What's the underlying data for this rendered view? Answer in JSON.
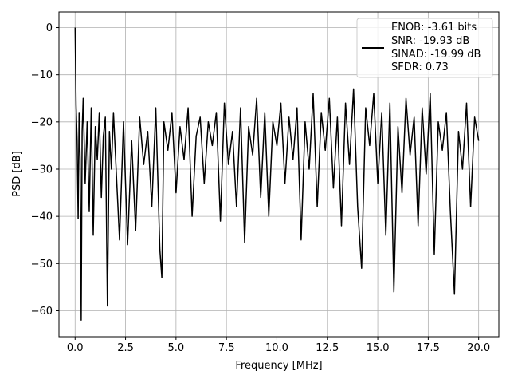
{
  "chart_data": {
    "type": "line",
    "title": "",
    "xlabel": "Frequency [MHz]",
    "ylabel": "PSD [dB]",
    "xlim": [
      -0.8,
      21.0
    ],
    "ylim": [
      -65.5,
      3.3
    ],
    "xticks": [
      0.0,
      2.5,
      5.0,
      7.5,
      10.0,
      12.5,
      15.0,
      17.5,
      20.0
    ],
    "xtick_labels": [
      "0.0",
      "2.5",
      "5.0",
      "7.5",
      "10.0",
      "12.5",
      "15.0",
      "17.5",
      "20.0"
    ],
    "yticks": [
      0,
      -10,
      -20,
      -30,
      -40,
      -50,
      -60
    ],
    "ytick_labels": [
      "0",
      "−10",
      "−20",
      "−30",
      "−40",
      "−50",
      "−60"
    ],
    "grid": true,
    "legend_position": "top-right",
    "line_color": "#000000",
    "series": [
      {
        "name": "ENOB: -3.61 bits\nSNR: -19.93 dB\nSINAD: -19.99 dB\nSFDR: 0.73",
        "x": [
          0.0,
          0.05,
          0.1,
          0.15,
          0.2,
          0.25,
          0.3,
          0.35,
          0.4,
          0.5,
          0.6,
          0.7,
          0.8,
          0.9,
          1.0,
          1.1,
          1.2,
          1.3,
          1.4,
          1.5,
          1.6,
          1.7,
          1.8,
          1.9,
          2.0,
          2.2,
          2.4,
          2.6,
          2.8,
          3.0,
          3.2,
          3.4,
          3.6,
          3.8,
          4.0,
          4.2,
          4.3,
          4.4,
          4.6,
          4.8,
          5.0,
          5.2,
          5.4,
          5.6,
          5.8,
          6.0,
          6.2,
          6.4,
          6.6,
          6.8,
          7.0,
          7.2,
          7.4,
          7.6,
          7.8,
          8.0,
          8.2,
          8.4,
          8.6,
          8.8,
          9.0,
          9.2,
          9.4,
          9.6,
          9.8,
          10.0,
          10.2,
          10.4,
          10.6,
          10.8,
          11.0,
          11.2,
          11.4,
          11.6,
          11.8,
          12.0,
          12.2,
          12.4,
          12.6,
          12.8,
          13.0,
          13.2,
          13.4,
          13.6,
          13.8,
          14.0,
          14.2,
          14.4,
          14.6,
          14.8,
          15.0,
          15.2,
          15.4,
          15.6,
          15.8,
          16.0,
          16.2,
          16.4,
          16.6,
          16.8,
          17.0,
          17.2,
          17.4,
          17.6,
          17.8,
          18.0,
          18.2,
          18.4,
          18.6,
          18.8,
          19.0,
          19.2,
          19.4,
          19.6,
          19.8,
          20.0
        ],
        "values": [
          0.0,
          -16.5,
          -24.0,
          -40.5,
          -18.0,
          -28.0,
          -62.0,
          -22.0,
          -15.0,
          -33.0,
          -20.0,
          -39.0,
          -17.0,
          -44.0,
          -21.0,
          -28.0,
          -18.0,
          -36.0,
          -23.0,
          -19.0,
          -59.0,
          -22.0,
          -30.0,
          -18.0,
          -27.0,
          -45.0,
          -20.0,
          -46.0,
          -24.0,
          -43.0,
          -19.0,
          -29.0,
          -22.0,
          -38.0,
          -17.0,
          -47.0,
          -53.0,
          -20.0,
          -26.0,
          -18.0,
          -35.0,
          -21.0,
          -28.0,
          -17.0,
          -40.0,
          -23.0,
          -19.0,
          -33.0,
          -20.0,
          -25.0,
          -18.0,
          -41.0,
          -16.0,
          -29.0,
          -22.0,
          -38.0,
          -17.0,
          -45.5,
          -21.0,
          -27.0,
          -15.0,
          -36.0,
          -18.0,
          -40.0,
          -20.0,
          -25.0,
          -16.0,
          -33.0,
          -19.0,
          -28.0,
          -17.0,
          -45.0,
          -20.0,
          -30.0,
          -14.0,
          -38.0,
          -18.0,
          -26.0,
          -15.0,
          -34.0,
          -19.0,
          -42.0,
          -16.0,
          -29.0,
          -13.0,
          -38.0,
          -51.0,
          -17.0,
          -25.0,
          -14.0,
          -33.0,
          -18.0,
          -44.0,
          -16.0,
          -56.0,
          -21.0,
          -35.0,
          -15.0,
          -27.0,
          -19.0,
          -42.0,
          -17.0,
          -31.0,
          -14.0,
          -48.0,
          -20.0,
          -26.0,
          -18.0,
          -39.0,
          -56.5,
          -22.0,
          -30.0,
          -16.0,
          -38.0,
          -19.0,
          -24.0
        ]
      }
    ],
    "legend_lines": [
      "ENOB: -3.61 bits",
      "SNR: -19.93 dB",
      "SINAD: -19.99 dB",
      "SFDR: 0.73"
    ]
  }
}
